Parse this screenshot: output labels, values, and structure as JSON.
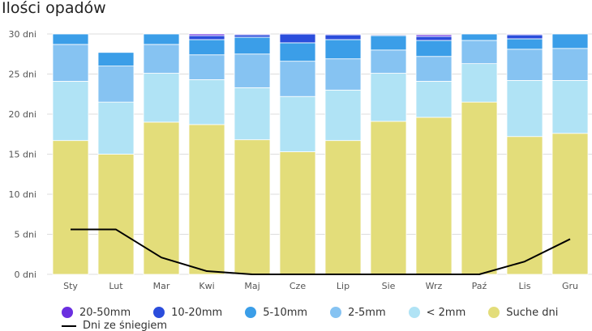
{
  "title": "Ilości opadów",
  "chart_data": {
    "type": "bar",
    "stacked": true,
    "categories": [
      "Sty",
      "Lut",
      "Mar",
      "Kwi",
      "Maj",
      "Cze",
      "Lip",
      "Sie",
      "Wrz",
      "Paź",
      "Lis",
      "Gru"
    ],
    "y_tick_labels": [
      "0 dni",
      "5 dni",
      "10 dni",
      "15 dni",
      "20 dni",
      "25 dni",
      "30 dni"
    ],
    "ylim": [
      0,
      30
    ],
    "grid": true,
    "series": [
      {
        "name": "Suche dni",
        "color": "#e3dd7a",
        "values": [
          16.7,
          15.0,
          19.0,
          18.7,
          16.8,
          15.3,
          16.7,
          19.1,
          19.6,
          21.5,
          17.2,
          17.6
        ]
      },
      {
        "name": "< 2mm",
        "color": "#b0e3f5",
        "values": [
          7.4,
          6.5,
          6.1,
          5.6,
          6.5,
          6.9,
          6.3,
          6.0,
          4.5,
          4.8,
          7.0,
          6.6
        ]
      },
      {
        "name": "2-5mm",
        "color": "#86c3f2",
        "values": [
          4.6,
          4.5,
          3.6,
          3.1,
          4.2,
          4.4,
          3.9,
          2.9,
          3.1,
          2.9,
          3.9,
          4.0
        ]
      },
      {
        "name": "5-10mm",
        "color": "#3b9ee8",
        "values": [
          1.3,
          1.7,
          1.3,
          1.9,
          2.1,
          2.3,
          2.4,
          1.8,
          2.0,
          0.8,
          1.3,
          1.8
        ]
      },
      {
        "name": "10-20mm",
        "color": "#2b4ddc",
        "values": [
          0.0,
          0.0,
          0.0,
          0.5,
          0.3,
          1.1,
          0.6,
          0.1,
          0.5,
          0.0,
          0.5,
          0.0
        ]
      },
      {
        "name": "20-50mm",
        "color": "#6b2fe0",
        "values": [
          0.0,
          0.0,
          0.0,
          0.2,
          0.1,
          0.1,
          0.1,
          0.0,
          0.2,
          0.0,
          0.1,
          0.0
        ]
      }
    ],
    "line_series": {
      "name": "Dni ze śniegiem",
      "color": "#000000",
      "values": [
        5.6,
        5.6,
        2.1,
        0.4,
        0.0,
        0.0,
        0.0,
        0.0,
        0.0,
        0.0,
        1.6,
        4.4
      ]
    },
    "legend": {
      "placement": "bottom",
      "items": [
        {
          "label": "20-50mm",
          "color": "#6b2fe0"
        },
        {
          "label": "10-20mm",
          "color": "#2b4ddc"
        },
        {
          "label": "5-10mm",
          "color": "#3b9ee8"
        },
        {
          "label": "2-5mm",
          "color": "#86c3f2"
        },
        {
          "label": "< 2mm",
          "color": "#b0e3f5"
        },
        {
          "label": "Suche dni",
          "color": "#e3dd7a"
        }
      ],
      "line_label": "Dni ze śniegiem"
    }
  }
}
